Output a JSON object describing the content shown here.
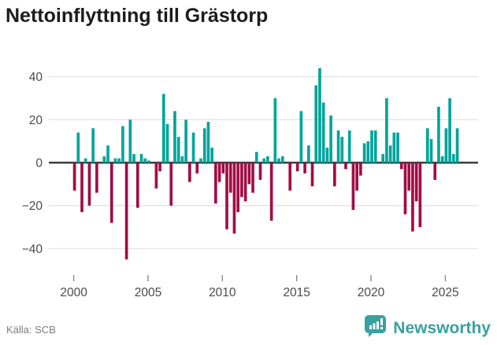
{
  "title": "Nettoinflyttning till Grästorp",
  "source": "Källa: SCB",
  "branding": {
    "name": "Newsworthy",
    "color": "#3ba0a0"
  },
  "colors": {
    "positive": "#00a49c",
    "negative": "#a10d45",
    "grid": "#e4e4e4",
    "zero_line": "#3a3a3a",
    "axis_text": "#4a4a4a",
    "tick_mark": "#8a8a8a",
    "title_text": "#1c1c1c",
    "source_text": "#7c7c7c"
  },
  "chart_data": {
    "type": "bar",
    "title": "Nettoinflyttning till Grästorp",
    "ylabel": "",
    "xlabel": "",
    "frequency": "quarterly",
    "start_year": 2000,
    "x_tick_years": [
      2000,
      2005,
      2010,
      2015,
      2020,
      2025
    ],
    "y_ticks": [
      40,
      20,
      0,
      -20,
      -40
    ],
    "ylim": [
      -50,
      46
    ],
    "grid": true,
    "values": [
      -13,
      14,
      -23,
      2,
      -20,
      16,
      -14,
      0,
      3,
      8,
      -28,
      2,
      2,
      17,
      -45,
      20,
      4,
      -21,
      4,
      2,
      1,
      0,
      -12,
      -4,
      32,
      18,
      -20,
      24,
      12,
      3,
      20,
      -9,
      14,
      -5,
      2,
      16,
      19,
      7,
      -19,
      -9,
      -5,
      -31,
      -14,
      -33,
      -23,
      -16,
      -18,
      -10,
      -14,
      5,
      -8,
      2,
      3,
      -27,
      30,
      2,
      3,
      0,
      -13,
      0,
      -4,
      24,
      -5,
      8,
      -11,
      36,
      44,
      28,
      7,
      22,
      -11,
      15,
      12,
      -3,
      15,
      -22,
      -13,
      -6,
      9,
      10,
      15,
      15,
      0,
      4,
      30,
      8,
      14,
      14,
      -3,
      -24,
      -13,
      -32,
      -18,
      -30,
      0,
      16,
      11,
      -8,
      26,
      3,
      16,
      30,
      4,
      16
    ]
  }
}
